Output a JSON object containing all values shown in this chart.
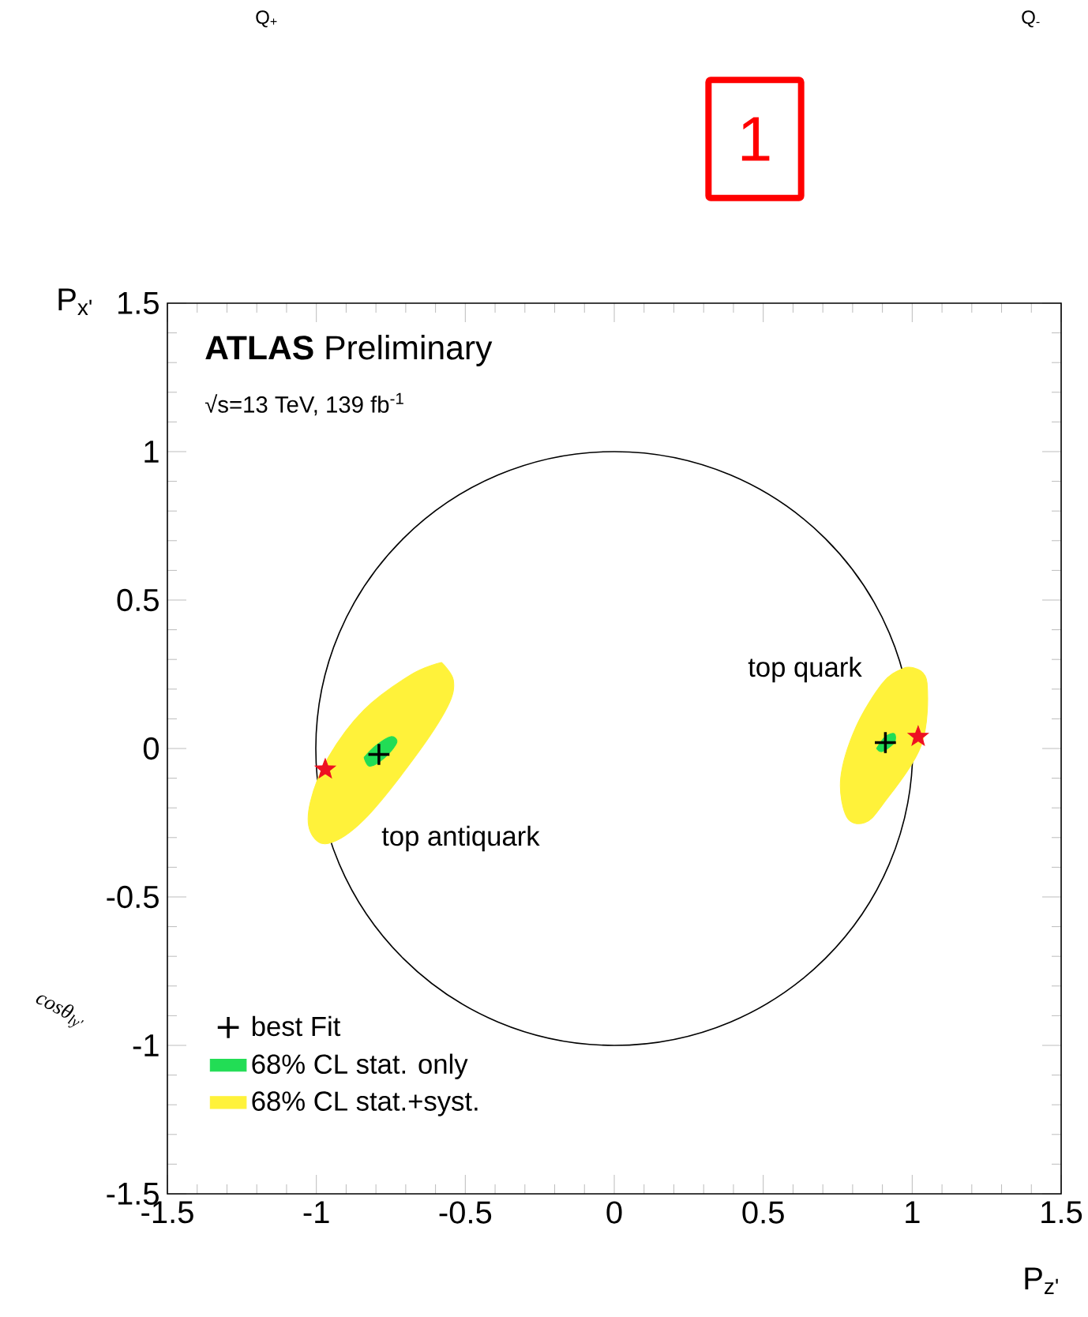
{
  "chart_data": {
    "type": "scatter",
    "xlabel": "P$_{z'}$",
    "ylabel": "P$_{x'}$",
    "xlim": [
      -1.5,
      1.5
    ],
    "ylim": [
      -1.5,
      1.5
    ],
    "xticks": [
      -1.5,
      -1,
      -0.5,
      0,
      0.5,
      1,
      1.5
    ],
    "yticks": [
      -1.5,
      -1,
      -0.5,
      0,
      0.5,
      1,
      1.5
    ],
    "grid": false,
    "legend": "bottom left",
    "annotations": [
      "**ATLAS** Preliminary",
      "√s=13 TeV, 139 fb$^{-1}$",
      "top quark",
      "top antiquark",
      "Q$_{+}$",
      "Q$_{-}$",
      "1",
      "cosθ$_{ly'}$"
    ],
    "series": [
      {
        "type": "area",
        "name": "68% CL stat.+syst.",
        "color": "#fff23a",
        "x": [
          -0.58,
          -0.54,
          -0.56,
          -0.67,
          -0.84,
          -0.96,
          -1.02,
          -1.02,
          -0.96,
          -0.84,
          -0.68,
          null,
          1.01,
          1.05,
          1.03,
          0.9,
          0.84,
          0.78,
          0.76,
          0.81,
          0.9,
          0.97
        ],
        "values": [
          0.29,
          0.23,
          0.14,
          -0.03,
          -0.24,
          -0.32,
          -0.28,
          -0.18,
          -0.03,
          0.13,
          0.25,
          null,
          0.27,
          0.22,
          0.01,
          -0.19,
          -0.25,
          -0.23,
          -0.1,
          0.07,
          0.22,
          0.27
        ]
      },
      {
        "type": "area",
        "name": "68% CL stat. only",
        "color": "#22dd55",
        "x": [
          -0.84,
          -0.82,
          -0.77,
          -0.73,
          -0.75,
          -0.8,
          null,
          0.88,
          0.9,
          0.94,
          0.94,
          0.91
        ],
        "values": [
          -0.03,
          -0.06,
          -0.03,
          0.02,
          0.04,
          0.01,
          null,
          0.0,
          -0.01,
          0.02,
          0.05,
          0.04
        ]
      },
      {
        "color": "#ee1122",
        "marker": "star",
        "x": [
          -0.97,
          1.02
        ],
        "values": [
          -0.07,
          0.04
        ]
      },
      {
        "name": "best Fit",
        "color": "#000000",
        "marker": "cross",
        "x": [
          -0.79,
          0.91
        ],
        "values": [
          -0.02,
          0.02
        ]
      }
    ]
  }
}
